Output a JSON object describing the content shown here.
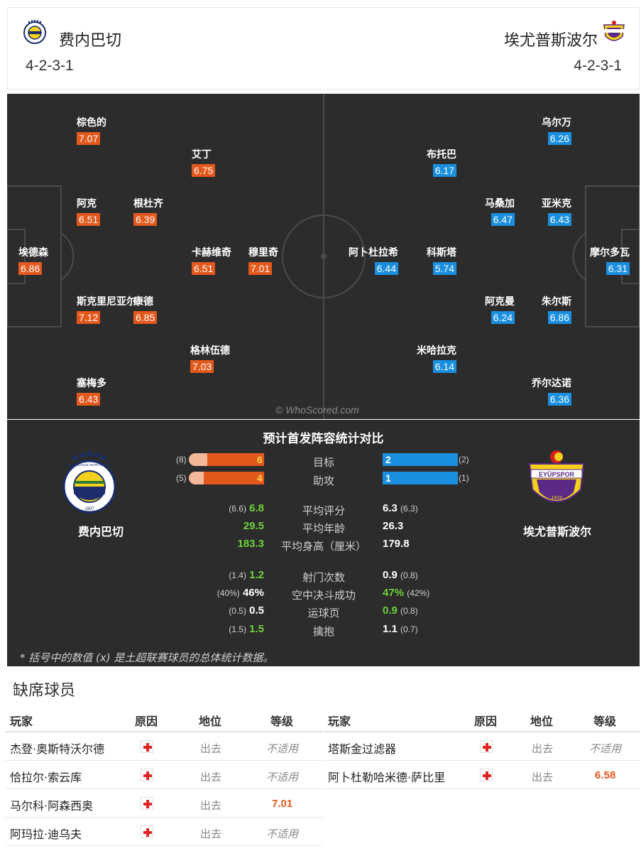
{
  "header": {
    "home": {
      "name": "费内巴切",
      "formation": "4-2-3-1"
    },
    "away": {
      "name": "埃尤普斯波尔",
      "formation": "4-2-3-1"
    }
  },
  "pitch": {
    "watermark": "© WhoScored.com",
    "home_players": [
      {
        "name": "棕色的",
        "rating": "7.07"
      },
      {
        "name": "艾丁",
        "rating": "6.75"
      },
      {
        "name": "阿克",
        "rating": "6.51"
      },
      {
        "name": "根杜齐",
        "rating": "6.39"
      },
      {
        "name": "埃德森",
        "rating": "6.86"
      },
      {
        "name": "卡赫维奇",
        "rating": "6.51"
      },
      {
        "name": "穆里奇",
        "rating": "7.01"
      },
      {
        "name": "斯克里尼亚尔",
        "rating": "7.12"
      },
      {
        "name": "康德",
        "rating": "6.85"
      },
      {
        "name": "格林伍德",
        "rating": "7.03"
      },
      {
        "name": "塞梅多",
        "rating": "6.43"
      }
    ],
    "away_players": [
      {
        "name": "乌尔万",
        "rating": "6.26"
      },
      {
        "name": "布托巴",
        "rating": "6.17"
      },
      {
        "name": "马桑加",
        "rating": "6.47"
      },
      {
        "name": "亚米克",
        "rating": "6.43"
      },
      {
        "name": "阿卜杜拉希",
        "rating": "6.44"
      },
      {
        "name": "科斯塔",
        "rating": "5.74"
      },
      {
        "name": "摩尔多瓦",
        "rating": "6.31"
      },
      {
        "name": "阿克曼",
        "rating": "6.24"
      },
      {
        "name": "朱尔斯",
        "rating": "6.86"
      },
      {
        "name": "米哈拉克",
        "rating": "6.14"
      },
      {
        "name": "乔尔达诺",
        "rating": "6.36"
      }
    ]
  },
  "stats": {
    "title": "预计首发阵容统计对比",
    "home_team": "费内巴切",
    "away_team": "埃尤普斯波尔",
    "home_logo_text": "FENERBAHÇE SPOR KULÜBÜ",
    "home_logo_year": "1907",
    "away_logo_text": "EYÜPSPOR",
    "away_logo_year": "1919",
    "bars": [
      {
        "label": "目标",
        "home": "6",
        "home_avg": "(8)",
        "away": "2",
        "away_avg": "(2)",
        "home_frac": 0.75,
        "away_frac": 1.0
      },
      {
        "label": "助攻",
        "home": "4",
        "home_avg": "(5)",
        "away": "1",
        "away_avg": "(1)",
        "home_frac": 0.8,
        "away_frac": 1.0
      }
    ],
    "rows1": [
      {
        "label": "平均评分",
        "home_avg": "(6.6)",
        "home": "6.8",
        "away": "6.3",
        "away_avg": "(6.3)"
      },
      {
        "label": "平均年龄",
        "home_avg": "",
        "home": "29.5",
        "away": "26.3",
        "away_avg": ""
      },
      {
        "label": "平均身高（厘米）",
        "home_avg": "",
        "home": "183.3",
        "away": "179.8",
        "away_avg": ""
      }
    ],
    "rows2": [
      {
        "label": "射门次数",
        "home_avg": "(1.4)",
        "home": "1.2",
        "away": "0.9",
        "away_avg": "(0.8)"
      },
      {
        "label": "空中决斗成功",
        "home_avg": "(40%)",
        "home": "46%",
        "away": "47%",
        "away_avg": "(42%)"
      },
      {
        "label": "运球页",
        "home_avg": "(0.5)",
        "home": "0.5",
        "away": "0.9",
        "away_avg": "(0.8)"
      },
      {
        "label": "擒抱",
        "home_avg": "(1.5)",
        "home": "1.5",
        "away": "1.1",
        "away_avg": "(0.7)"
      }
    ],
    "footnote": "* 括号中的数值 (x) 是土超联赛球员的总体统计数据。"
  },
  "missing": {
    "title": "缺席球员",
    "headers": {
      "player": "玩家",
      "reason": "原因",
      "position": "地位",
      "grade": "等级"
    },
    "home": [
      {
        "player": "杰登·奥斯特沃尔德",
        "position": "出去",
        "grade": "不适用"
      },
      {
        "player": "恰拉尔·索云库",
        "position": "出去",
        "grade": "不适用"
      },
      {
        "player": "马尔科·阿森西奥",
        "position": "出去",
        "grade": "7.01"
      },
      {
        "player": "阿玛拉·迪乌夫",
        "position": "出去",
        "grade": "不适用"
      }
    ],
    "away": [
      {
        "player": "塔斯金过滤器",
        "position": "出去",
        "grade": "不适用"
      },
      {
        "player": "阿卜杜勒哈米德·萨比里",
        "position": "出去",
        "grade": "6.58"
      }
    ]
  },
  "colors": {
    "home_accent": "#e3581c",
    "away_accent": "#1a8fe0",
    "green": "#6ed23a"
  }
}
